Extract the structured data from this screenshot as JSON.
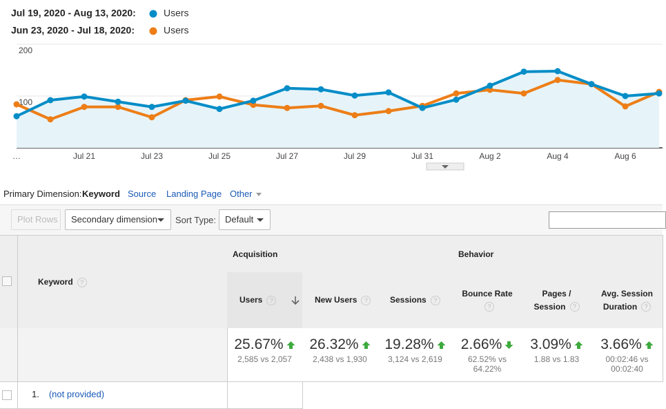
{
  "chart_data": {
    "type": "line",
    "categories": [
      "…",
      null,
      "Jul 21",
      null,
      "Jul 23",
      null,
      "Jul 25",
      null,
      "Jul 27",
      null,
      "Jul 29",
      null,
      "Jul 31",
      null,
      "Aug 2",
      null,
      "Aug 4",
      null,
      "Aug 6",
      null
    ],
    "series": [
      {
        "name": "Users",
        "period": "Jul 19, 2020 - Aug 13, 2020:",
        "color": "#058dc7",
        "area": true,
        "values": [
          61,
          92,
          99,
          89,
          79,
          91,
          75,
          91,
          115,
          113,
          101,
          107,
          77,
          93,
          120,
          147,
          148,
          123,
          100,
          105
        ]
      },
      {
        "name": "Users",
        "period": "Jun 23, 2020 - Jul 18, 2020:",
        "color": "#ed7e17",
        "area": false,
        "values": [
          84,
          55,
          79,
          79,
          59,
          92,
          99,
          83,
          77,
          81,
          63,
          71,
          81,
          105,
          112,
          105,
          131,
          123,
          80,
          108
        ]
      }
    ],
    "ylim": [
      0,
      200
    ],
    "yticks": [
      100,
      200
    ],
    "grid": true
  },
  "dimension": {
    "label": "Primary Dimension:",
    "active": "Keyword",
    "options": [
      "Source",
      "Landing Page",
      "Other"
    ]
  },
  "toolbar": {
    "plot_rows": "Plot Rows",
    "secondary": "Secondary dimension",
    "sort_label": "Sort Type:",
    "sort_value": "Default"
  },
  "table": {
    "help": "?",
    "key_header": "Keyword",
    "groups": [
      "Acquisition",
      "Behavior"
    ],
    "columns": [
      {
        "name": "Users",
        "total": "25.67%",
        "trend": "up",
        "compare": "2,585 vs 2,057",
        "sorted": true
      },
      {
        "name": "New Users",
        "total": "26.32%",
        "trend": "up",
        "compare": "2,438 vs 1,930"
      },
      {
        "name": "Sessions",
        "total": "19.28%",
        "trend": "up",
        "compare": "3,124 vs 2,619"
      },
      {
        "name": "Bounce Rate",
        "total": "2.66%",
        "trend": "down",
        "compare": "62.52% vs 64.22%"
      },
      {
        "name": "Pages / Session",
        "total": "3.09%",
        "trend": "up",
        "compare": "1.88 vs 1.83"
      },
      {
        "name": "Avg. Session Duration",
        "total": "3.66%",
        "trend": "up",
        "compare": "00:02:46 vs 00:02:40"
      }
    ],
    "rows": [
      {
        "index": "1.",
        "keyword": "(not provided)"
      }
    ]
  }
}
